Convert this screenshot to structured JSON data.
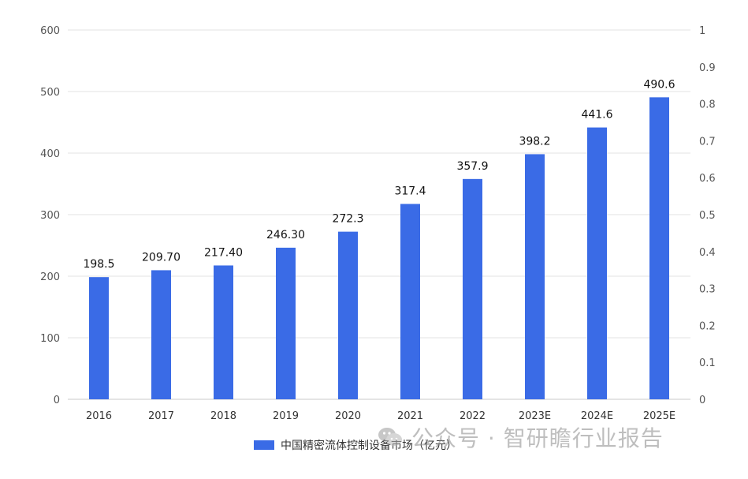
{
  "chart_data": {
    "type": "bar",
    "categories": [
      "2016",
      "2017",
      "2018",
      "2019",
      "2020",
      "2021",
      "2022",
      "2023E",
      "2024E",
      "2025E"
    ],
    "series": [
      {
        "name": "中国精密流体控制设备市场（亿元）",
        "values": [
          198.5,
          209.7,
          217.4,
          246.3,
          272.3,
          317.4,
          357.9,
          398.2,
          441.6,
          490.6
        ],
        "labels": [
          "198.5",
          "209.70",
          "217.40",
          "246.30",
          "272.3",
          "317.4",
          "357.9",
          "398.2",
          "441.6",
          "490.6"
        ],
        "color": "#3a6be6"
      }
    ],
    "ylim": [
      0,
      600
    ],
    "yticks": [
      "0",
      "100",
      "200",
      "300",
      "400",
      "500",
      "600"
    ],
    "y2lim": [
      0,
      1
    ],
    "y2ticks": [
      "0",
      "0.1",
      "0.2",
      "0.3",
      "0.4",
      "0.5",
      "0.6",
      "0.7",
      "0.8",
      "0.9",
      "1"
    ],
    "grid": true,
    "legend_position": "bottom"
  },
  "watermark": {
    "text": "公众号 · 智研瞻行业报告",
    "icon": "wechat-icon"
  }
}
